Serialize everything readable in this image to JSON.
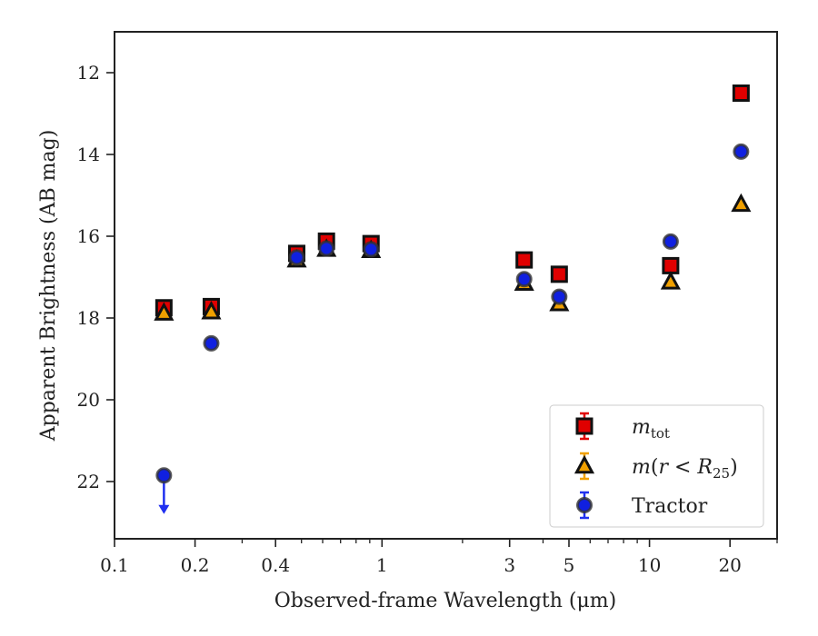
{
  "chart_data": {
    "type": "scatter",
    "xlabel": "Observed-frame Wavelength (μm)",
    "ylabel": "Apparent Brightness (AB mag)",
    "xscale": "log",
    "xlim": [
      0.1,
      30
    ],
    "ylim": [
      23.4,
      11.0
    ],
    "y_inverted": true,
    "grid": false,
    "legend_position": "bottom-right",
    "x_ticks": [
      {
        "value": 0.1,
        "label": "0.1"
      },
      {
        "value": 0.2,
        "label": "0.2"
      },
      {
        "value": 0.4,
        "label": "0.4"
      },
      {
        "value": 1,
        "label": "1"
      },
      {
        "value": 3,
        "label": "3"
      },
      {
        "value": 5,
        "label": "5"
      },
      {
        "value": 10,
        "label": "10"
      },
      {
        "value": 20,
        "label": "20"
      }
    ],
    "x_minor_ticks": [
      0.3,
      0.5,
      0.6,
      0.7,
      0.8,
      0.9,
      2,
      4,
      6,
      7,
      8,
      9,
      30
    ],
    "y_ticks": [
      {
        "value": 12,
        "label": "12"
      },
      {
        "value": 14,
        "label": "14"
      },
      {
        "value": 16,
        "label": "16"
      },
      {
        "value": 18,
        "label": "18"
      },
      {
        "value": 20,
        "label": "20"
      },
      {
        "value": 22,
        "label": "22"
      }
    ],
    "series": [
      {
        "name": "m_tot",
        "marker": "square",
        "color": "#e00000",
        "edge": "#111111",
        "errcolor": "#e00000",
        "points": [
          {
            "x": 0.153,
            "y": 17.75
          },
          {
            "x": 0.23,
            "y": 17.72
          },
          {
            "x": 0.48,
            "y": 16.42
          },
          {
            "x": 0.62,
            "y": 16.12
          },
          {
            "x": 0.91,
            "y": 16.18
          },
          {
            "x": 3.4,
            "y": 16.58
          },
          {
            "x": 4.6,
            "y": 16.93
          },
          {
            "x": 12.0,
            "y": 16.72
          },
          {
            "x": 22.0,
            "y": 12.5
          }
        ]
      },
      {
        "name": "m(r < R25)",
        "marker": "triangle",
        "color": "#f0a000",
        "edge": "#111111",
        "errcolor": "#f0a000",
        "points": [
          {
            "x": 0.153,
            "y": 17.88
          },
          {
            "x": 0.23,
            "y": 17.85
          },
          {
            "x": 0.48,
            "y": 16.58
          },
          {
            "x": 0.62,
            "y": 16.32
          },
          {
            "x": 0.91,
            "y": 16.35
          },
          {
            "x": 3.4,
            "y": 17.15
          },
          {
            "x": 4.6,
            "y": 17.65
          },
          {
            "x": 12.0,
            "y": 17.12
          },
          {
            "x": 22.0,
            "y": 15.22
          }
        ]
      },
      {
        "name": "Tractor",
        "marker": "circle",
        "color": "#1020e0",
        "edge": "#333333",
        "errcolor": "#2030f0",
        "points": [
          {
            "x": 0.153,
            "y": 21.85,
            "upper_limit": true,
            "arrow_to": 22.75
          },
          {
            "x": 0.23,
            "y": 18.62
          },
          {
            "x": 0.48,
            "y": 16.52
          },
          {
            "x": 0.62,
            "y": 16.3
          },
          {
            "x": 0.91,
            "y": 16.32
          },
          {
            "x": 3.4,
            "y": 17.05
          },
          {
            "x": 4.6,
            "y": 17.48
          },
          {
            "x": 12.0,
            "y": 16.13
          },
          {
            "x": 22.0,
            "y": 13.93
          }
        ]
      }
    ],
    "legend": [
      {
        "label_prefix": "m",
        "label_sub": "tot",
        "label_rest": "",
        "marker": "square"
      },
      {
        "label_prefix": "m",
        "label_sub": "25",
        "label_rest": "(r < R",
        "marker": "triangle"
      },
      {
        "label_prefix": "",
        "label_sub": "",
        "label_rest": "Tractor",
        "marker": "circle"
      }
    ]
  }
}
